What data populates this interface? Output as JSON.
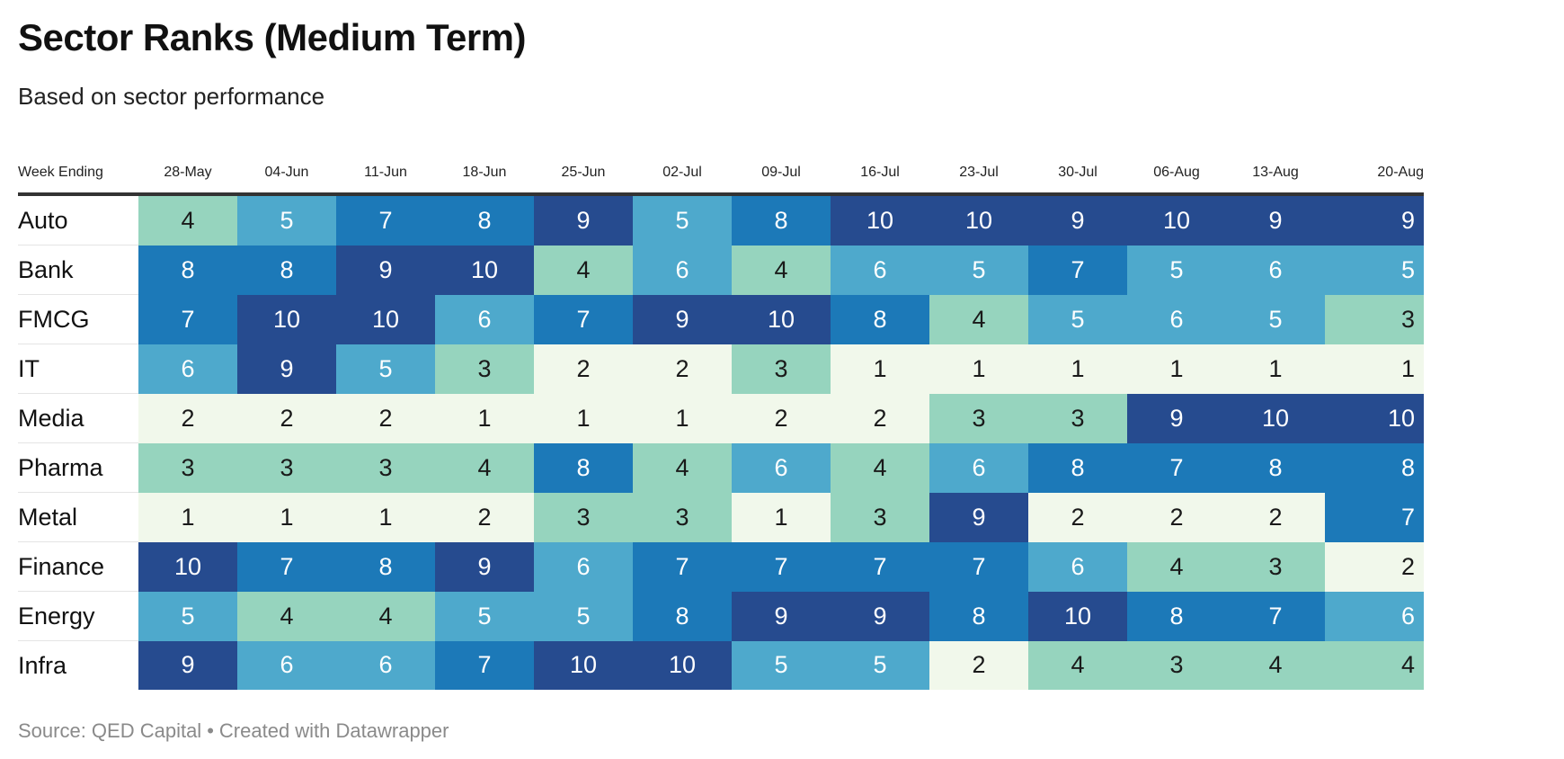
{
  "title": "Sector Ranks (Medium Term)",
  "subtitle": "Based on sector performance",
  "footer": {
    "source": "Source: QED Capital",
    "separator": "•",
    "credit": "Created with Datawrapper"
  },
  "chart_data": {
    "type": "heatmap",
    "title": "Sector Ranks (Medium Term)",
    "subtitle": "Based on sector performance",
    "row_header": "Week Ending",
    "columns": [
      "28-May",
      "04-Jun",
      "11-Jun",
      "18-Jun",
      "25-Jun",
      "02-Jul",
      "09-Jul",
      "16-Jul",
      "23-Jul",
      "30-Jul",
      "06-Aug",
      "13-Aug",
      "20-Aug"
    ],
    "rows": [
      {
        "name": "Auto",
        "values": [
          4,
          5,
          7,
          8,
          9,
          5,
          8,
          10,
          10,
          9,
          10,
          9,
          9
        ]
      },
      {
        "name": "Bank",
        "values": [
          8,
          8,
          9,
          10,
          4,
          6,
          4,
          6,
          5,
          7,
          5,
          6,
          5
        ]
      },
      {
        "name": "FMCG",
        "values": [
          7,
          10,
          10,
          6,
          7,
          9,
          10,
          8,
          4,
          5,
          6,
          5,
          3
        ]
      },
      {
        "name": "IT",
        "values": [
          6,
          9,
          5,
          3,
          2,
          2,
          3,
          1,
          1,
          1,
          1,
          1,
          1
        ]
      },
      {
        "name": "Media",
        "values": [
          2,
          2,
          2,
          1,
          1,
          1,
          2,
          2,
          3,
          3,
          9,
          10,
          10
        ]
      },
      {
        "name": "Pharma",
        "values": [
          3,
          3,
          3,
          4,
          8,
          4,
          6,
          4,
          6,
          8,
          7,
          8,
          8
        ]
      },
      {
        "name": "Metal",
        "values": [
          1,
          1,
          1,
          2,
          3,
          3,
          1,
          3,
          9,
          2,
          2,
          2,
          7
        ]
      },
      {
        "name": "Finance",
        "values": [
          10,
          7,
          8,
          9,
          6,
          7,
          7,
          7,
          7,
          6,
          4,
          3,
          2
        ]
      },
      {
        "name": "Energy",
        "values": [
          5,
          4,
          4,
          5,
          5,
          8,
          9,
          9,
          8,
          10,
          8,
          7,
          6
        ]
      },
      {
        "name": "Infra",
        "values": [
          9,
          6,
          6,
          7,
          10,
          10,
          5,
          5,
          2,
          4,
          3,
          4,
          4
        ]
      }
    ],
    "color_scale": {
      "1": "#f1f8eb",
      "2": "#f1f8eb",
      "3": "#96d4be",
      "4": "#96d4be",
      "5": "#4ea9cc",
      "6": "#4ea9cc",
      "7": "#1c79b8",
      "8": "#1c79b8",
      "9": "#264b8f",
      "10": "#264b8f"
    }
  }
}
